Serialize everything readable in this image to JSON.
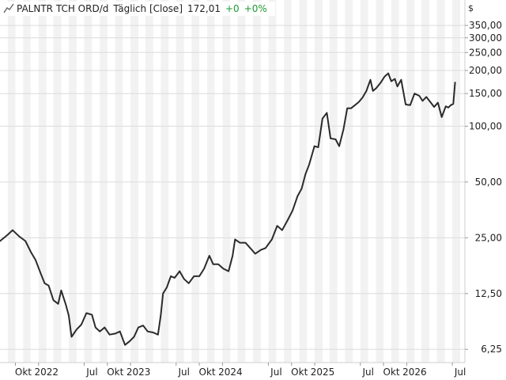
{
  "header": {
    "symbol": "PALNTR TCH ORD/d",
    "interval": "Täglich [Close]",
    "last": "172,01",
    "change": "+0",
    "change_pct": "+0%"
  },
  "currency_symbol": "$",
  "colors": {
    "line": "#2b2b2b",
    "band_alt": "#f2f2f2",
    "grid": "#dcdcdc",
    "positive": "#1e9a2e",
    "axis_text": "#222222"
  },
  "chart_data": {
    "type": "line",
    "title": "PALNTR TCH ORD/d",
    "xlabel": "",
    "ylabel": "",
    "scale": "log",
    "ylim": [
      5.3,
      480
    ],
    "xlim": [
      "2021-08-01",
      "2026-08-20"
    ],
    "y_ticks": [
      {
        "value": 350,
        "label": "350,00"
      },
      {
        "value": 300,
        "label": "300,00"
      },
      {
        "value": 250,
        "label": "250,00"
      },
      {
        "value": 200,
        "label": "200,00"
      },
      {
        "value": 150,
        "label": "150,00"
      },
      {
        "value": 100,
        "label": "100,00"
      },
      {
        "value": 50,
        "label": "50,00"
      },
      {
        "value": 25,
        "label": "25,00"
      },
      {
        "value": 12.5,
        "label": "12,50"
      },
      {
        "value": 6.25,
        "label": "6,25"
      }
    ],
    "x_ticks": [
      {
        "date": "2021-10-01",
        "label": "Okt"
      },
      {
        "date": "2022-01-01",
        "label": "2022"
      },
      {
        "date": "2022-07-01",
        "label": "Jul"
      },
      {
        "date": "2022-10-01",
        "label": "Okt"
      },
      {
        "date": "2023-01-01",
        "label": "2023"
      },
      {
        "date": "2023-07-01",
        "label": "Jul"
      },
      {
        "date": "2023-10-01",
        "label": "Okt"
      },
      {
        "date": "2024-01-01",
        "label": "2024"
      },
      {
        "date": "2024-07-01",
        "label": "Jul"
      },
      {
        "date": "2024-10-01",
        "label": "Okt"
      },
      {
        "date": "2025-01-01",
        "label": "2025"
      },
      {
        "date": "2025-07-01",
        "label": "Jul"
      },
      {
        "date": "2025-10-01",
        "label": "Okt"
      },
      {
        "date": "2026-01-01",
        "label": "2026"
      },
      {
        "date": "2026-07-01",
        "label": "Jul"
      }
    ],
    "grid": true,
    "series": [
      {
        "x": [
          "2021-08-01",
          "2021-09-01",
          "2021-09-20",
          "2021-10-15",
          "2021-11-10",
          "2021-12-01",
          "2021-12-20",
          "2022-01-10",
          "2022-01-25",
          "2022-02-10",
          "2022-03-01",
          "2022-03-20",
          "2022-04-01",
          "2022-04-20",
          "2022-05-01",
          "2022-05-12",
          "2022-06-01",
          "2022-06-20",
          "2022-07-10",
          "2022-08-01",
          "2022-08-15",
          "2022-09-01",
          "2022-09-20",
          "2022-10-10",
          "2022-11-01",
          "2022-11-20",
          "2022-12-10",
          "2022-12-28",
          "2023-01-15",
          "2023-02-01",
          "2023-02-20",
          "2023-03-10",
          "2023-04-01",
          "2023-04-20",
          "2023-05-01",
          "2023-05-10",
          "2023-05-25",
          "2023-06-10",
          "2023-06-25",
          "2023-07-15",
          "2023-08-01",
          "2023-08-20",
          "2023-09-10",
          "2023-10-01",
          "2023-10-20",
          "2023-11-10",
          "2023-11-25",
          "2023-12-15",
          "2024-01-05",
          "2024-01-25",
          "2024-02-10",
          "2024-02-20",
          "2024-03-10",
          "2024-04-01",
          "2024-04-20",
          "2024-05-10",
          "2024-06-01",
          "2024-06-20",
          "2024-07-15",
          "2024-08-05",
          "2024-08-25",
          "2024-09-15",
          "2024-10-05",
          "2024-10-25",
          "2024-11-10",
          "2024-11-25",
          "2024-12-10",
          "2024-12-31",
          "2025-01-15",
          "2025-02-01",
          "2025-02-18",
          "2025-03-05",
          "2025-03-25",
          "2025-04-08",
          "2025-04-25",
          "2025-05-10",
          "2025-05-25",
          "2025-06-10",
          "2025-06-25",
          "2025-07-10",
          "2025-07-25",
          "2025-08-10",
          "2025-08-20",
          "2025-09-01",
          "2025-09-20",
          "2025-10-05",
          "2025-10-20",
          "2025-11-01",
          "2025-11-15",
          "2025-11-25",
          "2025-12-10",
          "2025-12-28",
          "2026-01-15",
          "2026-02-01",
          "2026-02-20",
          "2026-03-05",
          "2026-03-20",
          "2026-04-05",
          "2026-04-20",
          "2026-05-05",
          "2026-05-20",
          "2026-06-05",
          "2026-06-15",
          "2026-06-25",
          "2026-07-05",
          "2026-07-12"
        ],
        "values": [
          24,
          26,
          27.5,
          25.5,
          24,
          21,
          19,
          16,
          14.2,
          13.8,
          11.5,
          11,
          13,
          10.8,
          9.5,
          7.3,
          8,
          8.5,
          9.8,
          9.6,
          8.2,
          7.8,
          8.2,
          7.5,
          7.6,
          7.8,
          6.6,
          6.9,
          7.3,
          8.2,
          8.4,
          7.8,
          7.7,
          7.5,
          9.5,
          12.5,
          13.5,
          15.5,
          15.2,
          16.5,
          15,
          14.2,
          15.5,
          15.5,
          17,
          20,
          18,
          18,
          17,
          16.5,
          20,
          24.5,
          23.5,
          23.5,
          22,
          20.5,
          21.5,
          22,
          24.5,
          29,
          27.5,
          31,
          35,
          42,
          46,
          55,
          62,
          78,
          77,
          110,
          118,
          86,
          85,
          78,
          96,
          125,
          125,
          130,
          135,
          143,
          155,
          178,
          155,
          160,
          172,
          185,
          193,
          175,
          180,
          164,
          178,
          131,
          130,
          150,
          146,
          137,
          144,
          135,
          127,
          134,
          112,
          128,
          126,
          130,
          132,
          172
        ]
      }
    ]
  }
}
